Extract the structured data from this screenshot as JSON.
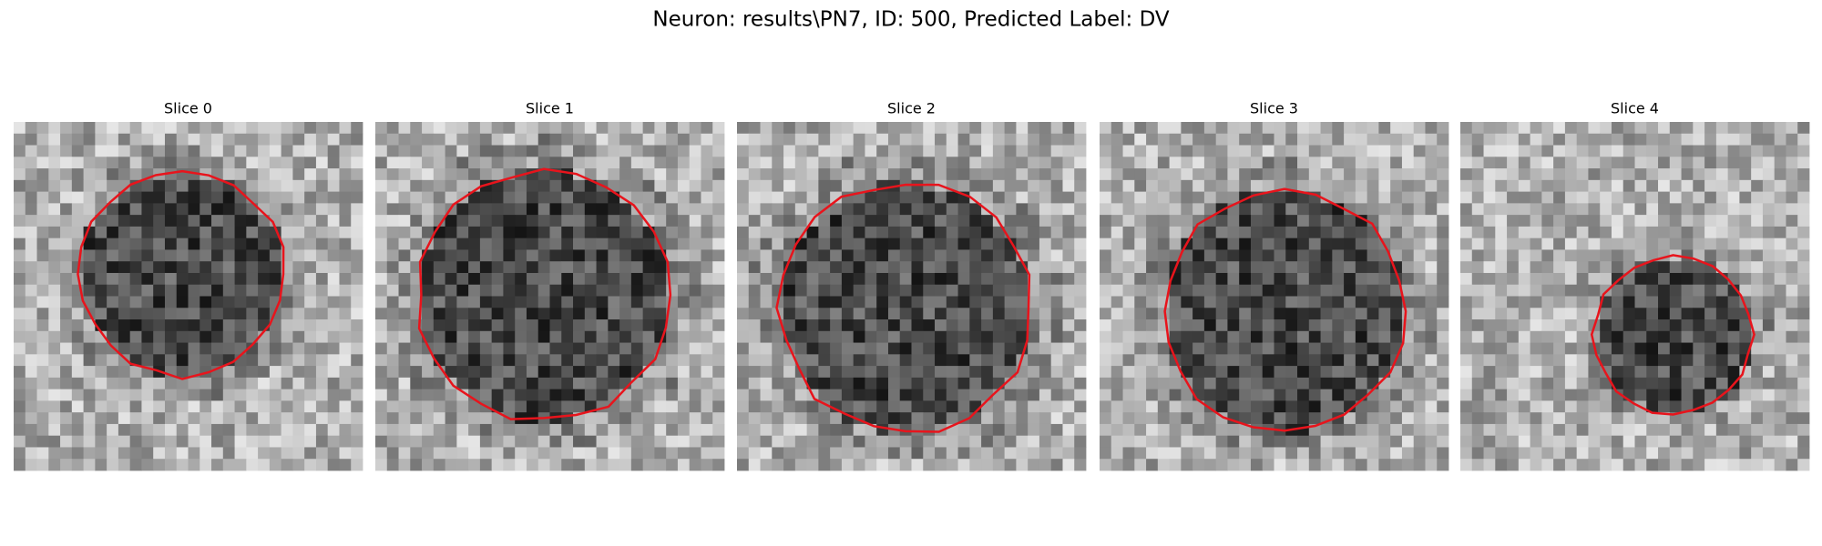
{
  "title": "Neuron: results\\PN7, ID: 500, Predicted Label: DV",
  "panels": [
    {
      "label": "Slice 0"
    },
    {
      "label": "Slice 1"
    },
    {
      "label": "Slice 2"
    },
    {
      "label": "Slice 3"
    },
    {
      "label": "Slice 4"
    }
  ]
}
